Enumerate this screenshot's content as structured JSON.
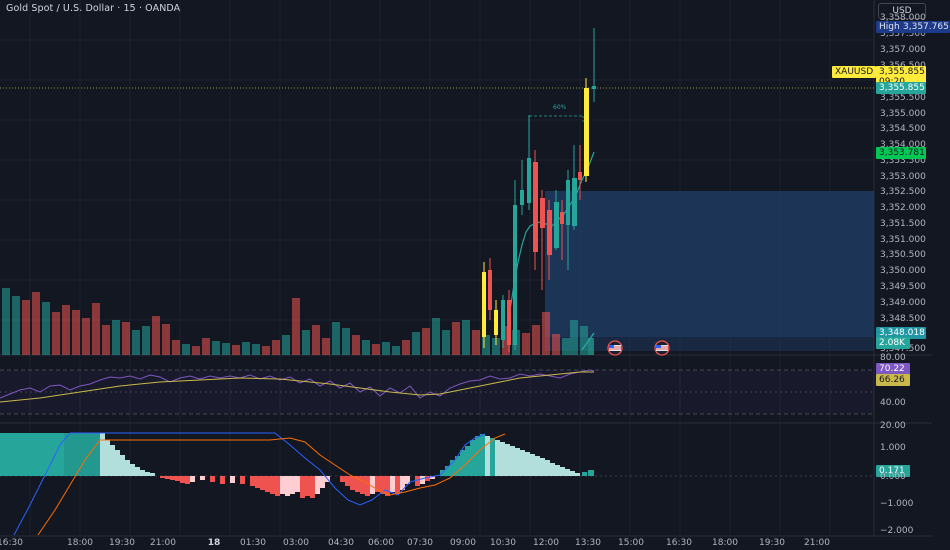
{
  "header": {
    "title": "Gold Spot / U.S. Dollar · 15 · OANDA",
    "currency_button": "USD"
  },
  "price_axis": {
    "ticks": [
      "3,358.000",
      "3,357.500",
      "3,357.000",
      "3,356.500",
      "3,355.500",
      "3,355.000",
      "3,354.500",
      "3,354.000",
      "3,353.500",
      "3,353.000",
      "3,352.500",
      "3,352.000",
      "3,351.500",
      "3,351.000",
      "3,350.500",
      "3,350.000",
      "3,349.500",
      "3,349.000",
      "3,348.500",
      "3,347.500"
    ],
    "high_label": "High",
    "high_value": "3,357.765",
    "symbol_label": "XAUUSD",
    "last_price": "3,355.855",
    "countdown": "09:20",
    "last_price_2": "3,355.855",
    "ma_value": "3,353.781",
    "box_value": "3,348.018",
    "volume_value": "2.08K"
  },
  "position_label": "60%",
  "rsi": {
    "ticks": [
      "80.00",
      "40.00"
    ],
    "value_1": "70.22",
    "value_2": "66.26"
  },
  "macd": {
    "ticks": [
      "20.00",
      "1.000",
      "0.000",
      "−1.000",
      "−2.000"
    ],
    "value": "0.171"
  },
  "time_axis": {
    "labels": [
      "16:30",
      "18:00",
      "19:30",
      "21:00",
      "18",
      "01:30",
      "03:00",
      "04:30",
      "06:00",
      "07:30",
      "09:00",
      "10:30",
      "12:00",
      "13:30",
      "15:00",
      "16:30",
      "18:00",
      "19:30",
      "21:00"
    ]
  },
  "colors": {
    "bg": "#131722",
    "up": "#26a69a",
    "down": "#ef5350",
    "yellow": "#ffeb3b",
    "rsi_line": "#7e57c2",
    "ma_line": "#c9b84a"
  }
}
